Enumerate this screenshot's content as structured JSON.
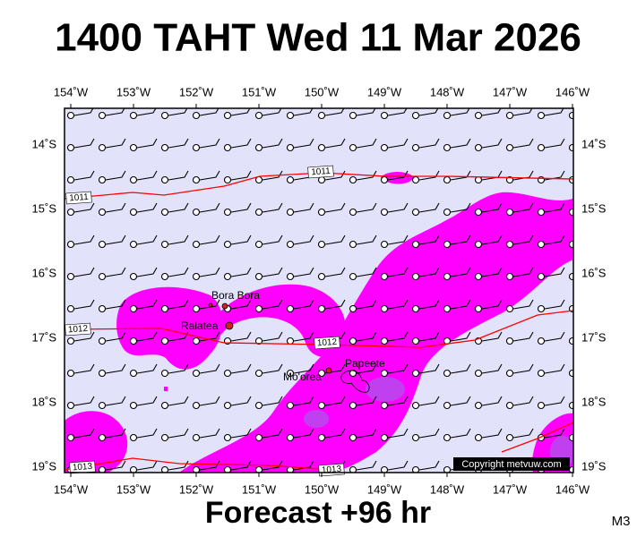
{
  "title": "1400 TAHT Wed 11 Mar 2026",
  "footer": "Forecast +96 hr",
  "model": "M3",
  "copyright": "Copyright metvuw.com",
  "x_labels": [
    "154˚W",
    "153˚W",
    "152˚W",
    "151˚W",
    "150˚W",
    "149˚W",
    "148˚W",
    "147˚W",
    "146˚W"
  ],
  "y_labels": [
    "14˚S",
    "15˚S",
    "16˚S",
    "17˚S",
    "18˚S",
    "19˚S"
  ],
  "places": [
    "Bora Bora",
    "Raiatea",
    "Mo'orea",
    "Papeete"
  ],
  "isobar_labels": [
    "1011",
    "1011",
    "1012",
    "1012",
    "1013",
    "1013"
  ]
}
